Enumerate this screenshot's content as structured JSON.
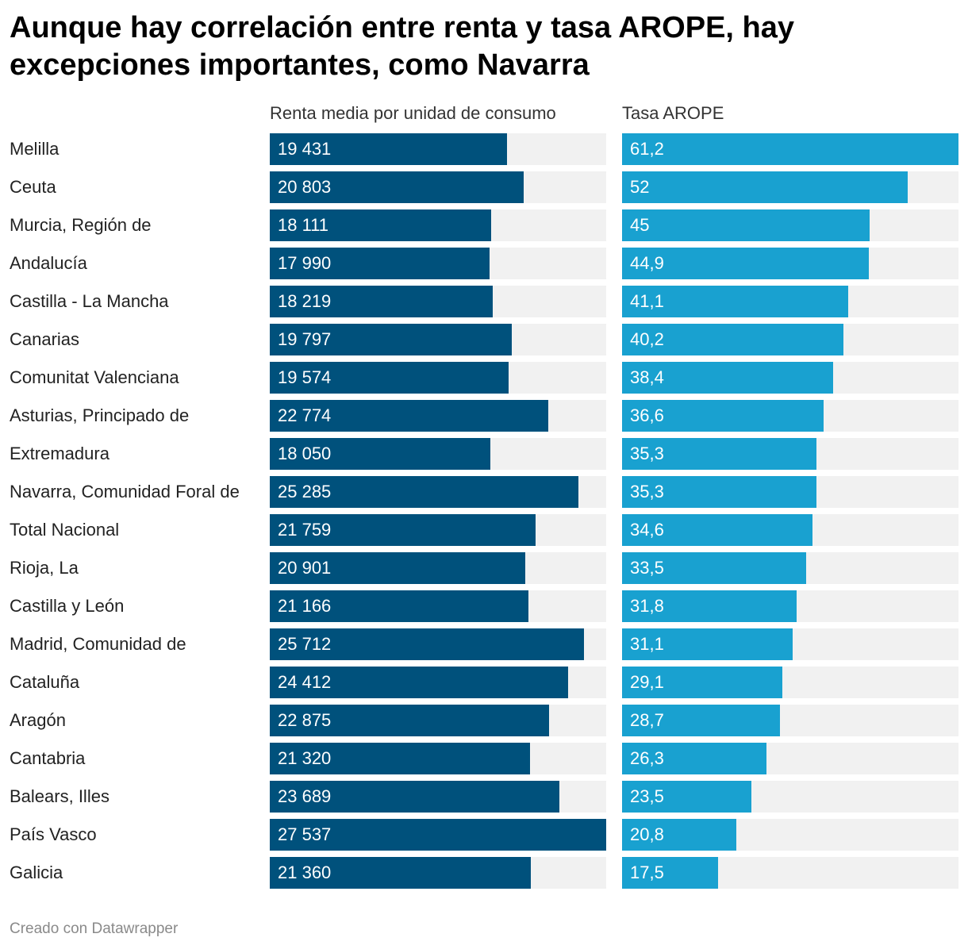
{
  "title": "Aunque hay correlación entre renta y tasa AROPE, hay excepciones importantes, como Navarra",
  "footer": "Creado con Datawrapper",
  "colors": {
    "renta": "#00517c",
    "arope": "#19a1d0",
    "track": "#f1f1f1"
  },
  "chart_data": {
    "type": "bar",
    "title": "Aunque hay correlación entre renta y tasa AROPE, hay excepciones importantes, como Navarra",
    "categories": [
      "Melilla",
      "Ceuta",
      "Murcia, Región de",
      "Andalucía",
      "Castilla - La Mancha",
      "Canarias",
      "Comunitat Valenciana",
      "Asturias, Principado de",
      "Extremadura",
      "Navarra, Comunidad Foral de",
      "Total Nacional",
      "Rioja, La",
      "Castilla y León",
      "Madrid, Comunidad de",
      "Cataluña",
      "Aragón",
      "Cantabria",
      "Balears, Illes",
      "País Vasco",
      "Galicia"
    ],
    "series": [
      {
        "name": "Renta media por unidad de consumo",
        "values": [
          19431,
          20803,
          18111,
          17990,
          18219,
          19797,
          19574,
          22774,
          18050,
          25285,
          21759,
          20901,
          21166,
          25712,
          24412,
          22875,
          21320,
          23689,
          27537,
          21360
        ],
        "labels": [
          "19 431",
          "20 803",
          "18 111",
          "17 990",
          "18 219",
          "19 797",
          "19 574",
          "22 774",
          "18 050",
          "25 285",
          "21 759",
          "20 901",
          "21 166",
          "25 712",
          "24 412",
          "22 875",
          "21 320",
          "23 689",
          "27 537",
          "21 360"
        ],
        "max": 27537
      },
      {
        "name": "Tasa AROPE",
        "values": [
          61.2,
          52,
          45,
          44.9,
          41.1,
          40.2,
          38.4,
          36.6,
          35.3,
          35.3,
          34.6,
          33.5,
          31.8,
          31.1,
          29.1,
          28.7,
          26.3,
          23.5,
          20.8,
          17.5
        ],
        "labels": [
          "61,2",
          "52",
          "45",
          "44,9",
          "41,1",
          "40,2",
          "38,4",
          "36,6",
          "35,3",
          "35,3",
          "34,6",
          "33,5",
          "31,8",
          "31,1",
          "29,1",
          "28,7",
          "26,3",
          "23,5",
          "20,8",
          "17,5"
        ],
        "max": 61.2
      }
    ]
  }
}
